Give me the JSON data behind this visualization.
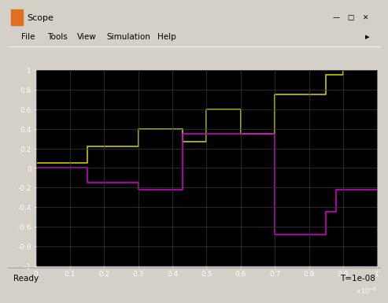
{
  "title": "Scope",
  "ylim": [
    -1,
    1
  ],
  "xlim": [
    0,
    1
  ],
  "background_color": "#000000",
  "figure_bg": "#c8c8c8",
  "grid_color": "#3a3a3a",
  "yticks": [
    -1,
    -0.8,
    -0.6,
    -0.4,
    -0.2,
    0,
    0.2,
    0.4,
    0.6,
    0.8,
    1
  ],
  "xticks": [
    0,
    0.1,
    0.2,
    0.3,
    0.4,
    0.5,
    0.6,
    0.7,
    0.8,
    0.9,
    1
  ],
  "yellow_x": [
    0,
    0.15,
    0.3,
    0.43,
    0.5,
    0.6,
    0.7,
    0.85,
    0.9,
    1.0
  ],
  "yellow_y": [
    0.05,
    0.22,
    0.4,
    0.27,
    0.6,
    0.35,
    0.75,
    0.95,
    1.0,
    1.0
  ],
  "magenta_x": [
    0,
    0.15,
    0.3,
    0.43,
    0.55,
    0.7,
    0.85,
    0.88,
    1.0
  ],
  "magenta_y": [
    0,
    -0.15,
    -0.22,
    0.35,
    0.35,
    -0.68,
    -0.45,
    -0.22,
    -0.22
  ],
  "yellow_color": "#c8c800",
  "magenta_color": "#cc00cc",
  "line_width": 1.2,
  "status_text": "Ready",
  "time_text": "T=1e-08",
  "title_bar_bg": "#7bafd4",
  "ui_bg": "#d4d0c8",
  "toolbar_bg": "#d4d0c8"
}
